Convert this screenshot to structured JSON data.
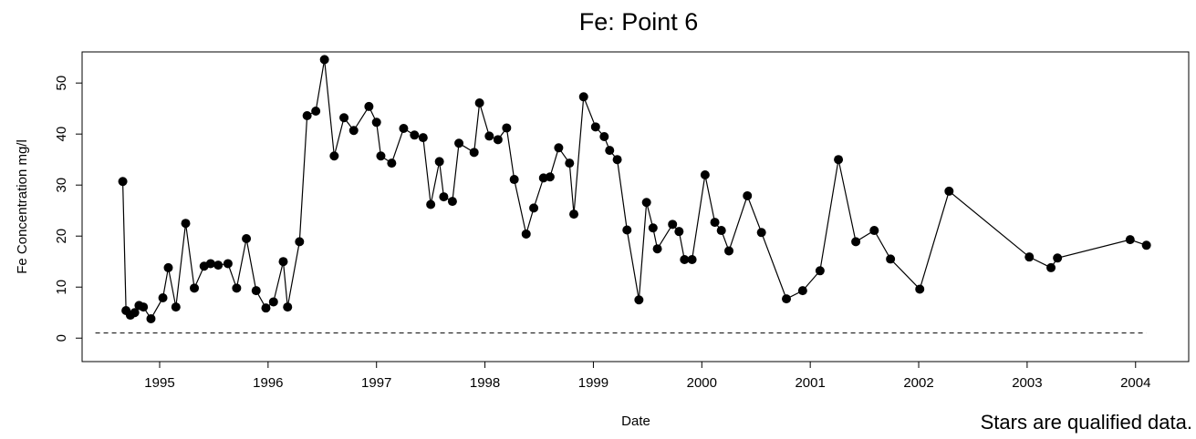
{
  "chart_data": {
    "type": "line",
    "title": "Fe:  Point 6",
    "x_label": "Date",
    "y_label": "Fe Concentration mg/l",
    "note": "Stars are qualified data.",
    "x": [
      1994.66,
      1994.69,
      1994.73,
      1994.77,
      1994.81,
      1994.85,
      1994.92,
      1995.03,
      1995.08,
      1995.15,
      1995.24,
      1995.32,
      1995.41,
      1995.47,
      1995.54,
      1995.63,
      1995.71,
      1995.8,
      1995.89,
      1995.98,
      1996.05,
      1996.14,
      1996.18,
      1996.29,
      1996.36,
      1996.44,
      1996.52,
      1996.61,
      1996.7,
      1996.79,
      1996.93,
      1997.0,
      1997.04,
      1997.14,
      1997.25,
      1997.35,
      1997.43,
      1997.5,
      1997.58,
      1997.62,
      1997.7,
      1997.76,
      1997.9,
      1997.95,
      1998.04,
      1998.12,
      1998.2,
      1998.27,
      1998.38,
      1998.45,
      1998.54,
      1998.6,
      1998.68,
      1998.78,
      1998.82,
      1998.91,
      1999.02,
      1999.1,
      1999.15,
      1999.22,
      1999.31,
      1999.42,
      1999.49,
      1999.55,
      1999.59,
      1999.73,
      1999.79,
      1999.84,
      1999.91,
      2000.03,
      2000.12,
      2000.18,
      2000.25,
      2000.42,
      2000.55,
      2000.78,
      2000.93,
      2001.09,
      2001.26,
      2001.42,
      2001.59,
      2001.74,
      2002.01,
      2002.28,
      2003.02,
      2003.22,
      2003.28,
      2003.95,
      2004.1
    ],
    "series": [
      {
        "name": "Fe",
        "color": "#000000",
        "values": [
          30.7,
          5.4,
          4.5,
          5.0,
          6.4,
          6.1,
          3.8,
          7.9,
          13.8,
          6.1,
          22.5,
          9.8,
          14.1,
          14.6,
          14.3,
          14.6,
          9.8,
          19.5,
          9.3,
          5.9,
          7.1,
          15.0,
          6.1,
          18.9,
          43.6,
          44.5,
          54.6,
          35.7,
          43.2,
          40.7,
          45.4,
          42.3,
          35.7,
          34.3,
          41.1,
          39.8,
          39.3,
          26.2,
          34.6,
          27.7,
          26.8,
          38.2,
          36.4,
          46.1,
          39.6,
          38.9,
          41.2,
          31.1,
          20.4,
          25.5,
          31.4,
          31.6,
          37.3,
          34.3,
          24.3,
          47.3,
          41.4,
          39.5,
          36.8,
          35.0,
          21.2,
          7.5,
          26.6,
          21.6,
          17.5,
          22.3,
          20.9,
          15.4,
          15.4,
          32.0,
          22.7,
          21.1,
          17.1,
          27.9,
          20.7,
          7.7,
          9.3,
          13.2,
          35.0,
          18.9,
          21.1,
          15.5,
          9.6,
          28.8,
          15.9,
          13.8,
          15.7,
          19.3,
          18.2
        ]
      }
    ],
    "reference_line": 1,
    "xlim": [
      1994.285,
      2004.49
    ],
    "xticks": [
      1995,
      1996,
      1997,
      1998,
      1999,
      2000,
      2001,
      2002,
      2003,
      2004
    ],
    "ylim": [
      -4.6,
      56.1
    ],
    "yticks": [
      0,
      10,
      20,
      30,
      40,
      50
    ]
  }
}
